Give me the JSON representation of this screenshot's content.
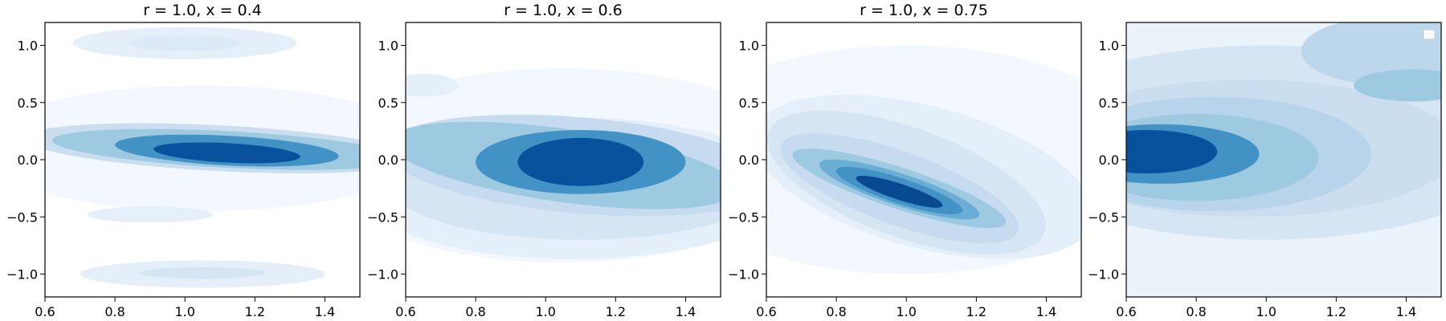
{
  "chart_data": [
    {
      "type": "contour",
      "title": "r = 1.0, x = 0.4",
      "xlim": [
        0.6,
        1.5
      ],
      "ylim": [
        -1.2,
        1.2
      ],
      "xticks": [
        "0.6",
        "0.8",
        "1.0",
        "1.2",
        "1.4"
      ],
      "xtick_values": [
        0.6,
        0.8,
        1.0,
        1.2,
        1.4
      ],
      "yticks": [
        "−1.0",
        "−0.5",
        "0.0",
        "0.5",
        "1.0"
      ],
      "ytick_values": [
        -1.0,
        -0.5,
        0.0,
        0.5,
        1.0
      ],
      "contours": [
        {
          "level": 1,
          "color": "#f3f8fe",
          "cx": 1.05,
          "cy": 0.1,
          "rx": 0.65,
          "ry": 0.55,
          "rot": 0
        },
        {
          "level": 2,
          "color": "#e5eff9",
          "cx": 1.0,
          "cy": 1.02,
          "rx": 0.32,
          "ry": 0.14,
          "rot": 0
        },
        {
          "level": 2,
          "color": "#e5eff9",
          "cx": 1.05,
          "cy": -1.0,
          "rx": 0.35,
          "ry": 0.12,
          "rot": 0
        },
        {
          "level": 2,
          "color": "#e5eff9",
          "cx": 0.9,
          "cy": -0.48,
          "rx": 0.18,
          "ry": 0.07,
          "rot": 0
        },
        {
          "level": 3,
          "color": "#dce9f6",
          "cx": 1.0,
          "cy": 1.02,
          "rx": 0.16,
          "ry": 0.07,
          "rot": 0
        },
        {
          "level": 3,
          "color": "#d6e5f4",
          "cx": 1.05,
          "cy": -0.99,
          "rx": 0.18,
          "ry": 0.05,
          "rot": 0
        },
        {
          "level": 4,
          "color": "#cadef0",
          "cx": 1.1,
          "cy": 0.1,
          "rx": 0.56,
          "ry": 0.2,
          "rot": 3
        },
        {
          "level": 5,
          "color": "#9ecae1",
          "cx": 1.12,
          "cy": 0.09,
          "rx": 0.5,
          "ry": 0.16,
          "rot": 3
        },
        {
          "level": 6,
          "color": "#4292c6",
          "cx": 1.12,
          "cy": 0.08,
          "rx": 0.32,
          "ry": 0.13,
          "rot": 3
        },
        {
          "level": 7,
          "color": "#08519c",
          "cx": 1.12,
          "cy": 0.06,
          "rx": 0.21,
          "ry": 0.085,
          "rot": 3
        }
      ]
    },
    {
      "type": "contour",
      "title": "r = 1.0, x = 0.6",
      "xlim": [
        0.6,
        1.5
      ],
      "ylim": [
        -1.2,
        1.2
      ],
      "xticks": [
        "0.6",
        "0.8",
        "1.0",
        "1.2",
        "1.4"
      ],
      "xtick_values": [
        0.6,
        0.8,
        1.0,
        1.2,
        1.4
      ],
      "yticks": [
        "−1.0",
        "−0.5",
        "0.0",
        "0.5",
        "1.0"
      ],
      "ytick_values": [
        -1.0,
        -0.5,
        0.0,
        0.5,
        1.0
      ],
      "contours": [
        {
          "level": 1,
          "color": "#f3f8fe",
          "cx": 1.05,
          "cy": -0.05,
          "rx": 0.7,
          "ry": 0.85,
          "rot": 0
        },
        {
          "level": 2,
          "color": "#e5eff9",
          "cx": 1.08,
          "cy": -0.25,
          "rx": 0.62,
          "ry": 0.62,
          "rot": 0
        },
        {
          "level": 2,
          "color": "#e5eff9",
          "cx": 0.65,
          "cy": 0.65,
          "rx": 0.1,
          "ry": 0.1,
          "rot": 0
        },
        {
          "level": 3,
          "color": "#d6e5f4",
          "cx": 1.1,
          "cy": -0.2,
          "rx": 0.55,
          "ry": 0.5,
          "rot": 0
        },
        {
          "level": 4,
          "color": "#c6dbef",
          "cx": 1.1,
          "cy": -0.05,
          "rx": 0.56,
          "ry": 0.42,
          "rot": 5
        },
        {
          "level": 5,
          "color": "#9ecae1",
          "cx": 1.05,
          "cy": -0.05,
          "rx": 0.5,
          "ry": 0.32,
          "rot": 8
        },
        {
          "level": 6,
          "color": "#4292c6",
          "cx": 1.1,
          "cy": -0.02,
          "rx": 0.3,
          "ry": 0.28,
          "rot": 0
        },
        {
          "level": 7,
          "color": "#08519c",
          "cx": 1.1,
          "cy": -0.02,
          "rx": 0.18,
          "ry": 0.21,
          "rot": 0
        }
      ]
    },
    {
      "type": "contour",
      "title": "r = 1.0, x = 0.75",
      "xlim": [
        0.6,
        1.5
      ],
      "ylim": [
        -1.2,
        1.2
      ],
      "xticks": [
        "0.6",
        "0.8",
        "1.0",
        "1.2",
        "1.4"
      ],
      "xtick_values": [
        0.6,
        0.8,
        1.0,
        1.2,
        1.4
      ],
      "yticks": [
        "−1.0",
        "−0.5",
        "0.0",
        "0.5",
        "1.0"
      ],
      "ytick_values": [
        -1.0,
        -0.5,
        0.0,
        0.5,
        1.0
      ],
      "contours": [
        {
          "level": 1,
          "color": "#f3f8fe",
          "cx": 1.0,
          "cy": 0.0,
          "rx": 0.7,
          "ry": 1.0,
          "rot": 0
        },
        {
          "level": 2,
          "color": "#e5eff9",
          "cx": 1.05,
          "cy": -0.15,
          "rx": 0.5,
          "ry": 0.62,
          "rot": 15
        },
        {
          "level": 3,
          "color": "#d6e5f4",
          "cx": 1.0,
          "cy": -0.2,
          "rx": 0.42,
          "ry": 0.48,
          "rot": 20
        },
        {
          "level": 4,
          "color": "#c6dbef",
          "cx": 0.98,
          "cy": -0.25,
          "rx": 0.36,
          "ry": 0.32,
          "rot": 20
        },
        {
          "level": 5,
          "color": "#9ecae1",
          "cx": 0.98,
          "cy": -0.25,
          "rx": 0.32,
          "ry": 0.18,
          "rot": 18
        },
        {
          "level": 6,
          "color": "#6aaed6",
          "cx": 0.98,
          "cy": -0.26,
          "rx": 0.24,
          "ry": 0.14,
          "rot": 18
        },
        {
          "level": 7,
          "color": "#4292c6",
          "cx": 0.98,
          "cy": -0.27,
          "rx": 0.19,
          "ry": 0.11,
          "rot": 18
        },
        {
          "level": 8,
          "color": "#084a92",
          "cx": 0.98,
          "cy": -0.28,
          "rx": 0.13,
          "ry": 0.07,
          "rot": 18
        }
      ]
    },
    {
      "type": "contour",
      "title": "",
      "xlim": [
        0.6,
        1.5
      ],
      "ylim": [
        -1.2,
        1.2
      ],
      "xticks": [
        "0.6",
        "0.8",
        "1.0",
        "1.2",
        "1.4"
      ],
      "xtick_values": [
        0.6,
        0.8,
        1.0,
        1.2,
        1.4
      ],
      "yticks": [
        "−1.0",
        "−0.5",
        "0.0",
        "0.5",
        "1.0"
      ],
      "ytick_values": [
        -1.0,
        -0.5,
        0.0,
        0.5,
        1.0
      ],
      "legend": "top-right",
      "background": "#eaf2fa",
      "contours": [
        {
          "level": 1,
          "color": "#d6e5f4",
          "cx": 1.0,
          "cy": 0.15,
          "rx": 0.75,
          "ry": 0.85,
          "rot": 0
        },
        {
          "level": 2,
          "color": "#cadef0",
          "cx": 0.95,
          "cy": 0.1,
          "rx": 0.6,
          "ry": 0.6,
          "rot": 0
        },
        {
          "level": 2,
          "color": "#bcd7ec",
          "cx": 1.35,
          "cy": 0.95,
          "rx": 0.25,
          "ry": 0.3,
          "rot": 0
        },
        {
          "level": 3,
          "color": "#b8d4ea",
          "cx": 0.85,
          "cy": 0.05,
          "rx": 0.45,
          "ry": 0.5,
          "rot": 0
        },
        {
          "level": 4,
          "color": "#9ecae1",
          "cx": 0.8,
          "cy": 0.02,
          "rx": 0.35,
          "ry": 0.38,
          "rot": 0
        },
        {
          "level": 4,
          "color": "#9ecae1",
          "cx": 1.42,
          "cy": 0.65,
          "rx": 0.17,
          "ry": 0.14,
          "rot": 0
        },
        {
          "level": 5,
          "color": "#4292c6",
          "cx": 0.7,
          "cy": 0.05,
          "rx": 0.28,
          "ry": 0.26,
          "rot": 0
        },
        {
          "level": 6,
          "color": "#08519c",
          "cx": 0.66,
          "cy": 0.07,
          "rx": 0.2,
          "ry": 0.19,
          "rot": 0
        }
      ]
    }
  ]
}
